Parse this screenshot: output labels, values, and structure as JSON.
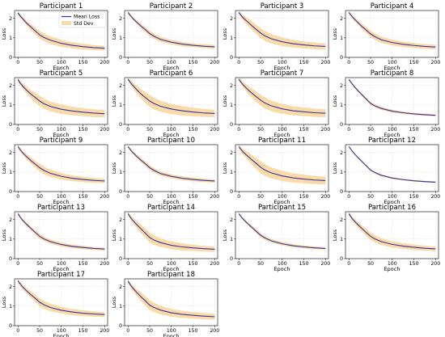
{
  "chart_data": {
    "type": "line",
    "layout": {
      "rows": 5,
      "cols": 4
    },
    "shared": {
      "xlabel": "Epoch",
      "ylabel": "Loss",
      "xlim": [
        -8,
        207
      ],
      "ylim": [
        0,
        2.4
      ],
      "xticks": [
        0,
        50,
        100,
        150,
        200
      ],
      "yticks": [
        0,
        1,
        2
      ],
      "grid": true,
      "x": [
        0,
        5,
        10,
        20,
        30,
        40,
        50,
        60,
        75,
        100,
        125,
        150,
        175,
        200
      ]
    },
    "legend": {
      "placement": "top-right",
      "panel": 0,
      "entries": [
        "Mean Loss",
        "Std Dev"
      ]
    },
    "colors": {
      "mean": "#3c2fa3",
      "band": "#f5cf8a"
    },
    "panels": [
      {
        "title": "Participant 1",
        "mean": [
          2.28,
          2.12,
          2.0,
          1.75,
          1.55,
          1.35,
          1.15,
          1.02,
          0.88,
          0.72,
          0.62,
          0.55,
          0.5,
          0.47
        ],
        "std": [
          0.1,
          0.1,
          0.1,
          0.12,
          0.15,
          0.18,
          0.2,
          0.2,
          0.2,
          0.18,
          0.16,
          0.15,
          0.13,
          0.12
        ]
      },
      {
        "title": "Participant 2",
        "mean": [
          2.3,
          2.15,
          2.02,
          1.8,
          1.6,
          1.42,
          1.22,
          1.08,
          0.92,
          0.78,
          0.68,
          0.62,
          0.57,
          0.54
        ],
        "std": [
          0.08,
          0.08,
          0.08,
          0.1,
          0.12,
          0.13,
          0.14,
          0.14,
          0.13,
          0.12,
          0.11,
          0.1,
          0.1,
          0.1
        ]
      },
      {
        "title": "Participant 3",
        "mean": [
          2.3,
          2.15,
          2.02,
          1.82,
          1.62,
          1.43,
          1.25,
          1.1,
          0.95,
          0.8,
          0.7,
          0.64,
          0.59,
          0.56
        ],
        "std": [
          0.1,
          0.12,
          0.14,
          0.18,
          0.22,
          0.24,
          0.25,
          0.25,
          0.24,
          0.22,
          0.2,
          0.18,
          0.17,
          0.16
        ]
      },
      {
        "title": "Participant 4",
        "mean": [
          2.3,
          2.15,
          2.02,
          1.8,
          1.58,
          1.4,
          1.2,
          1.06,
          0.9,
          0.76,
          0.67,
          0.61,
          0.56,
          0.53
        ],
        "std": [
          0.08,
          0.1,
          0.1,
          0.12,
          0.14,
          0.16,
          0.17,
          0.17,
          0.16,
          0.15,
          0.14,
          0.13,
          0.12,
          0.12
        ]
      },
      {
        "title": "Participant 5",
        "mean": [
          2.3,
          2.12,
          1.98,
          1.75,
          1.55,
          1.38,
          1.2,
          1.06,
          0.92,
          0.78,
          0.69,
          0.63,
          0.58,
          0.55
        ],
        "std": [
          0.1,
          0.12,
          0.14,
          0.18,
          0.22,
          0.25,
          0.26,
          0.26,
          0.25,
          0.24,
          0.22,
          0.21,
          0.2,
          0.19
        ]
      },
      {
        "title": "Participant 6",
        "mean": [
          2.32,
          2.16,
          2.02,
          1.78,
          1.56,
          1.38,
          1.2,
          1.07,
          0.93,
          0.79,
          0.7,
          0.64,
          0.59,
          0.56
        ],
        "std": [
          0.1,
          0.12,
          0.15,
          0.2,
          0.25,
          0.28,
          0.3,
          0.3,
          0.28,
          0.26,
          0.24,
          0.22,
          0.2,
          0.19
        ]
      },
      {
        "title": "Participant 7",
        "mean": [
          2.32,
          2.16,
          2.02,
          1.8,
          1.6,
          1.42,
          1.25,
          1.1,
          0.95,
          0.8,
          0.7,
          0.65,
          0.6,
          0.57
        ],
        "std": [
          0.1,
          0.12,
          0.15,
          0.2,
          0.24,
          0.27,
          0.28,
          0.28,
          0.27,
          0.25,
          0.23,
          0.22,
          0.21,
          0.2
        ]
      },
      {
        "title": "Participant 8",
        "mean": [
          2.3,
          2.15,
          2.0,
          1.75,
          1.52,
          1.3,
          1.08,
          0.95,
          0.82,
          0.68,
          0.6,
          0.54,
          0.5,
          0.47
        ],
        "std": [
          0.05,
          0.05,
          0.06,
          0.07,
          0.08,
          0.08,
          0.08,
          0.08,
          0.08,
          0.07,
          0.06,
          0.06,
          0.05,
          0.05
        ]
      },
      {
        "title": "Participant 9",
        "mean": [
          2.3,
          2.14,
          2.0,
          1.78,
          1.58,
          1.4,
          1.22,
          1.08,
          0.93,
          0.78,
          0.68,
          0.62,
          0.57,
          0.54
        ],
        "std": [
          0.08,
          0.1,
          0.12,
          0.14,
          0.16,
          0.18,
          0.2,
          0.2,
          0.19,
          0.17,
          0.15,
          0.14,
          0.13,
          0.12
        ]
      },
      {
        "title": "Participant 10",
        "mean": [
          2.3,
          2.15,
          2.02,
          1.8,
          1.6,
          1.42,
          1.22,
          1.08,
          0.92,
          0.78,
          0.68,
          0.62,
          0.57,
          0.54
        ],
        "std": [
          0.06,
          0.07,
          0.08,
          0.1,
          0.11,
          0.12,
          0.12,
          0.12,
          0.11,
          0.1,
          0.1,
          0.09,
          0.09,
          0.08
        ]
      },
      {
        "title": "Participant 11",
        "mean": [
          2.3,
          2.15,
          2.02,
          1.82,
          1.62,
          1.44,
          1.25,
          1.1,
          0.95,
          0.8,
          0.7,
          0.64,
          0.59,
          0.56
        ],
        "std": [
          0.1,
          0.12,
          0.15,
          0.2,
          0.25,
          0.28,
          0.3,
          0.3,
          0.28,
          0.26,
          0.24,
          0.22,
          0.21,
          0.2
        ]
      },
      {
        "title": "Participant 12",
        "mean": [
          2.3,
          2.15,
          2.0,
          1.76,
          1.54,
          1.32,
          1.1,
          0.97,
          0.83,
          0.69,
          0.61,
          0.55,
          0.51,
          0.48
        ],
        "std": [
          0.03,
          0.03,
          0.04,
          0.04,
          0.05,
          0.05,
          0.05,
          0.05,
          0.05,
          0.04,
          0.04,
          0.04,
          0.04,
          0.04
        ]
      },
      {
        "title": "Participant 13",
        "mean": [
          2.3,
          2.13,
          1.98,
          1.75,
          1.54,
          1.34,
          1.14,
          1.01,
          0.87,
          0.72,
          0.63,
          0.57,
          0.52,
          0.49
        ],
        "std": [
          0.06,
          0.07,
          0.08,
          0.1,
          0.11,
          0.12,
          0.12,
          0.12,
          0.11,
          0.1,
          0.09,
          0.09,
          0.08,
          0.08
        ]
      },
      {
        "title": "Participant 14",
        "mean": [
          2.3,
          2.13,
          1.98,
          1.74,
          1.52,
          1.3,
          1.08,
          0.95,
          0.82,
          0.68,
          0.6,
          0.55,
          0.51,
          0.48
        ],
        "std": [
          0.1,
          0.12,
          0.14,
          0.18,
          0.22,
          0.24,
          0.25,
          0.24,
          0.22,
          0.2,
          0.18,
          0.16,
          0.15,
          0.14
        ]
      },
      {
        "title": "Participant 15",
        "mean": [
          2.3,
          2.15,
          2.02,
          1.8,
          1.6,
          1.4,
          1.2,
          1.06,
          0.91,
          0.76,
          0.66,
          0.6,
          0.55,
          0.52
        ],
        "std": [
          0.05,
          0.06,
          0.07,
          0.08,
          0.09,
          0.1,
          0.1,
          0.1,
          0.09,
          0.09,
          0.08,
          0.08,
          0.07,
          0.07
        ]
      },
      {
        "title": "Participant 16",
        "mean": [
          2.3,
          2.13,
          1.98,
          1.75,
          1.54,
          1.34,
          1.14,
          1.01,
          0.87,
          0.73,
          0.64,
          0.58,
          0.53,
          0.5
        ],
        "std": [
          0.08,
          0.1,
          0.12,
          0.14,
          0.16,
          0.18,
          0.19,
          0.19,
          0.18,
          0.16,
          0.15,
          0.14,
          0.13,
          0.12
        ]
      },
      {
        "title": "Participant 17",
        "mean": [
          2.3,
          2.14,
          2.0,
          1.78,
          1.58,
          1.4,
          1.2,
          1.07,
          0.93,
          0.79,
          0.7,
          0.64,
          0.6,
          0.57
        ],
        "std": [
          0.08,
          0.1,
          0.12,
          0.14,
          0.17,
          0.19,
          0.2,
          0.2,
          0.19,
          0.17,
          0.16,
          0.15,
          0.14,
          0.13
        ]
      },
      {
        "title": "Participant 18",
        "mean": [
          2.28,
          2.1,
          1.95,
          1.7,
          1.48,
          1.27,
          1.05,
          0.93,
          0.8,
          0.66,
          0.58,
          0.53,
          0.49,
          0.46
        ],
        "std": [
          0.1,
          0.12,
          0.14,
          0.18,
          0.22,
          0.24,
          0.25,
          0.24,
          0.22,
          0.2,
          0.18,
          0.17,
          0.16,
          0.15
        ]
      }
    ]
  }
}
